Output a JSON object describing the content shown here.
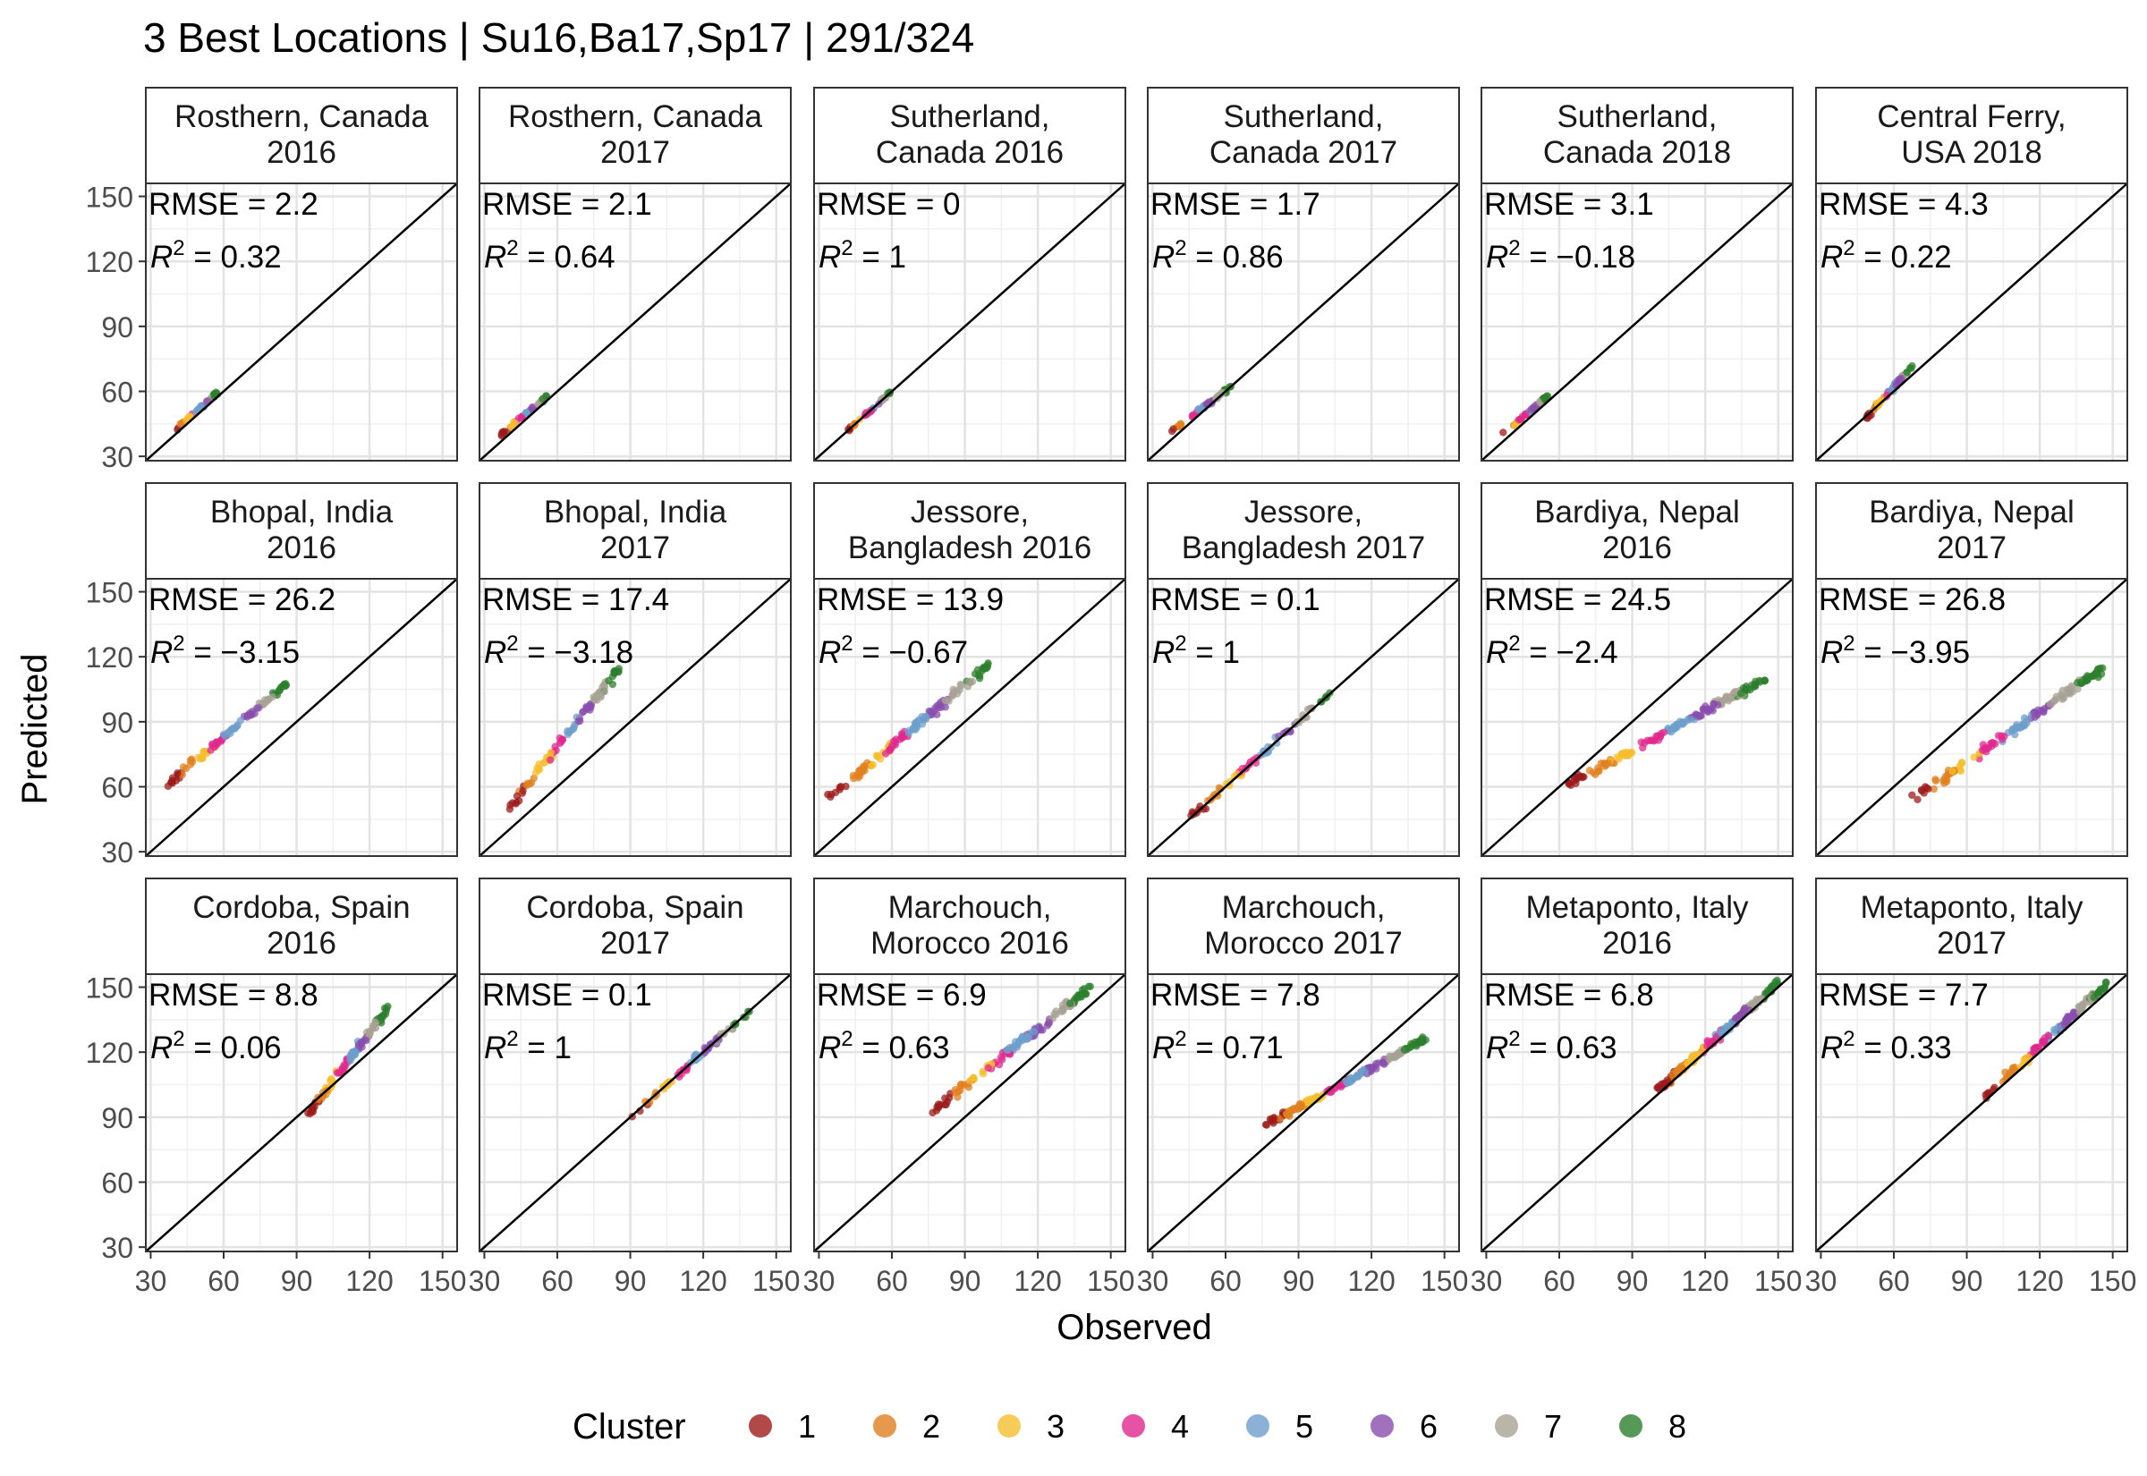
{
  "chart_data": {
    "type": "scatter",
    "title": "3 Best Locations | Su16,Ba17,Sp17 | 291/324",
    "xlabel": "Observed",
    "ylabel": "Predicted",
    "xlim": [
      28,
      156
    ],
    "ylim": [
      28,
      156
    ],
    "ticks": [
      30,
      60,
      90,
      120,
      150
    ],
    "grid": true,
    "reference_line": "y = x",
    "legend": {
      "title": "Cluster",
      "position": "bottom",
      "items": [
        {
          "label": "1",
          "color": "#9E1B1B"
        },
        {
          "label": "2",
          "color": "#E0801F"
        },
        {
          "label": "3",
          "color": "#F5BE2E"
        },
        {
          "label": "4",
          "color": "#E0288E"
        },
        {
          "label": "5",
          "color": "#6E9FCC"
        },
        {
          "label": "6",
          "color": "#8A4EAE"
        },
        {
          "label": "7",
          "color": "#A8A294"
        },
        {
          "label": "8",
          "color": "#2C7F2C"
        }
      ]
    },
    "panels": [
      {
        "title_lines": [
          "Rosthern, Canada",
          "2016"
        ],
        "rmse": "RMSE = 2.2",
        "r2_sign": "=",
        "r2_value": "0.32",
        "obs_range": [
          40,
          58
        ],
        "pred_range": [
          42,
          60
        ],
        "n": 45
      },
      {
        "title_lines": [
          "Rosthern, Canada",
          "2017"
        ],
        "rmse": "RMSE = 2.1",
        "r2_sign": "=",
        "r2_value": "0.64",
        "obs_range": [
          36,
          56
        ],
        "pred_range": [
          39,
          58
        ],
        "n": 40
      },
      {
        "title_lines": [
          "Sutherland,",
          "Canada 2016"
        ],
        "rmse": "RMSE = 0",
        "r2_sign": "=",
        "r2_value": "1",
        "obs_range": [
          42,
          60
        ],
        "pred_range": [
          42,
          60
        ],
        "n": 35
      },
      {
        "title_lines": [
          "Sutherland,",
          "Canada 2017"
        ],
        "rmse": "RMSE = 1.7",
        "r2_sign": "=",
        "r2_value": "0.86",
        "obs_range": [
          36,
          62
        ],
        "pred_range": [
          40,
          62
        ],
        "n": 50
      },
      {
        "title_lines": [
          "Sutherland,",
          "Canada 2018"
        ],
        "rmse": "RMSE = 3.1",
        "r2_sign": "=",
        "r2_value": "−0.18",
        "obs_range": [
          37,
          55
        ],
        "pred_range": [
          40,
          58
        ],
        "n": 45
      },
      {
        "title_lines": [
          "Central Ferry,",
          "USA 2018"
        ],
        "rmse": "RMSE = 4.3",
        "r2_sign": "=",
        "r2_value": "0.22",
        "obs_range": [
          48,
          68
        ],
        "pred_range": [
          47,
          72
        ],
        "n": 60
      },
      {
        "title_lines": [
          "Bhopal, India",
          "2016"
        ],
        "rmse": "RMSE = 26.2",
        "r2_sign": "=",
        "r2_value": "−3.15",
        "obs_range": [
          36,
          86
        ],
        "pred_range": [
          60,
          108
        ],
        "n": 95
      },
      {
        "title_lines": [
          "Bhopal, India",
          "2017"
        ],
        "rmse": "RMSE = 17.4",
        "r2_sign": "=",
        "r2_value": "−3.18",
        "obs_range": [
          40,
          86
        ],
        "pred_range": [
          50,
          115
        ],
        "n": 95
      },
      {
        "title_lines": [
          "Jessore,",
          "Bangladesh 2016"
        ],
        "rmse": "RMSE = 13.9",
        "r2_sign": "=",
        "r2_value": "−0.67",
        "obs_range": [
          34,
          100
        ],
        "pred_range": [
          55,
          116
        ],
        "n": 130
      },
      {
        "title_lines": [
          "Jessore,",
          "Bangladesh 2017"
        ],
        "rmse": "RMSE = 0.1",
        "r2_sign": "=",
        "r2_value": "1",
        "obs_range": [
          45,
          103
        ],
        "pred_range": [
          45,
          103
        ],
        "n": 70
      },
      {
        "title_lines": [
          "Bardiya, Nepal",
          "2016"
        ],
        "rmse": "RMSE = 24.5",
        "r2_sign": "=",
        "r2_value": "−2.4",
        "obs_range": [
          62,
          145
        ],
        "pred_range": [
          60,
          110
        ],
        "n": 150
      },
      {
        "title_lines": [
          "Bardiya, Nepal",
          "2017"
        ],
        "rmse": "RMSE = 26.8",
        "r2_sign": "=",
        "r2_value": "−3.95",
        "obs_range": [
          65,
          146
        ],
        "pred_range": [
          52,
          115
        ],
        "n": 140
      },
      {
        "title_lines": [
          "Cordoba, Spain",
          "2016"
        ],
        "rmse": "RMSE = 8.8",
        "r2_sign": "=",
        "r2_value": "0.06",
        "obs_range": [
          94,
          128
        ],
        "pred_range": [
          90,
          141
        ],
        "n": 110
      },
      {
        "title_lines": [
          "Cordoba, Spain",
          "2017"
        ],
        "rmse": "RMSE = 0.1",
        "r2_sign": "=",
        "r2_value": "1",
        "obs_range": [
          90,
          139
        ],
        "pred_range": [
          90,
          139
        ],
        "n": 70
      },
      {
        "title_lines": [
          "Marchouch,",
          "Morocco 2016"
        ],
        "rmse": "RMSE = 6.9",
        "r2_sign": "=",
        "r2_value": "0.63",
        "obs_range": [
          76,
          142
        ],
        "pred_range": [
          92,
          150
        ],
        "n": 130
      },
      {
        "title_lines": [
          "Marchouch,",
          "Morocco 2017"
        ],
        "rmse": "RMSE = 7.8",
        "r2_sign": "=",
        "r2_value": "0.71",
        "obs_range": [
          76,
          142
        ],
        "pred_range": [
          86,
          126
        ],
        "n": 170
      },
      {
        "title_lines": [
          "Metaponto, Italy",
          "2016"
        ],
        "rmse": "RMSE = 6.8",
        "r2_sign": "=",
        "r2_value": "0.63",
        "obs_range": [
          100,
          150
        ],
        "pred_range": [
          102,
          152
        ],
        "n": 170
      },
      {
        "title_lines": [
          "Metaponto, Italy",
          "2017"
        ],
        "rmse": "RMSE = 7.7",
        "r2_sign": "=",
        "r2_value": "0.33",
        "obs_range": [
          98,
          148
        ],
        "pred_range": [
          100,
          152
        ],
        "n": 120
      }
    ]
  }
}
